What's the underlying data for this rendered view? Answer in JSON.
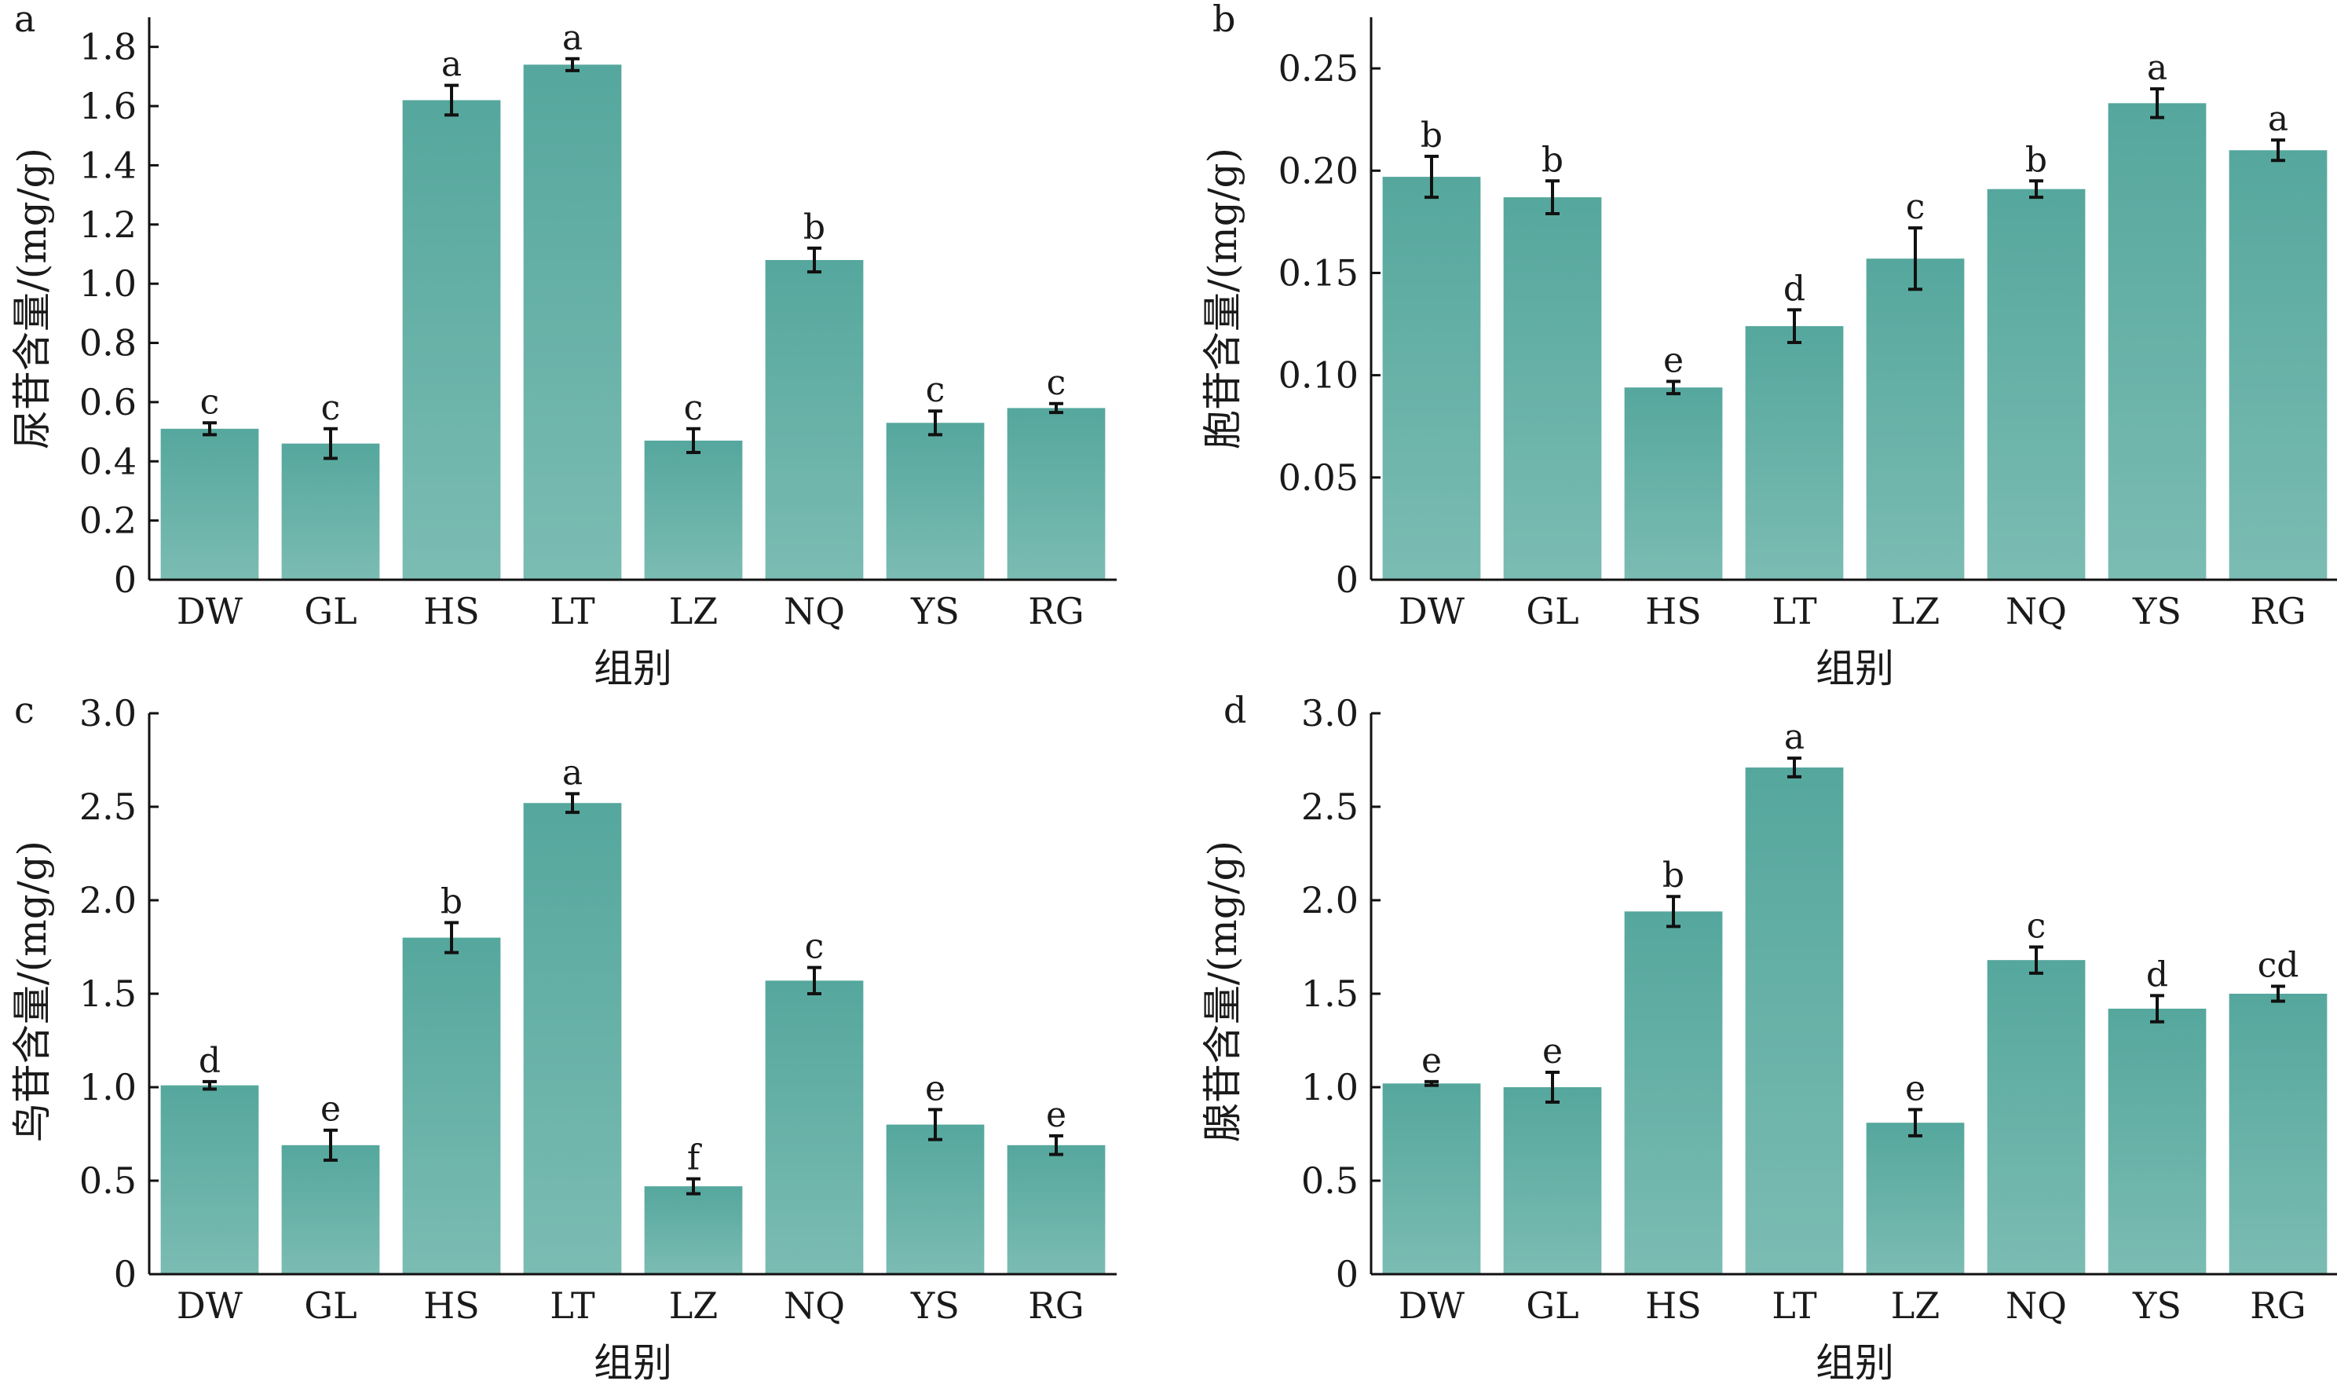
{
  "bar_color_top": "#55a79d",
  "bar_color_bottom": "#7bbcb3",
  "chart_data": [
    {
      "type": "bar",
      "panel_label": "a",
      "xlabel": "组别",
      "ylabel": "尿苷含量/(mg/g)",
      "categories": [
        "DW",
        "GL",
        "HS",
        "LT",
        "LZ",
        "NQ",
        "YS",
        "RG"
      ],
      "values": [
        0.51,
        0.46,
        1.62,
        1.74,
        0.47,
        1.08,
        0.53,
        0.58
      ],
      "errors": [
        0.02,
        0.05,
        0.05,
        0.02,
        0.04,
        0.04,
        0.04,
        0.015
      ],
      "significance": [
        "c",
        "c",
        "a",
        "a",
        "c",
        "b",
        "c",
        "c"
      ],
      "ylim": [
        0,
        1.9
      ],
      "yticks": [
        0,
        0.2,
        0.4,
        0.6,
        0.8,
        1.0,
        1.2,
        1.4,
        1.6,
        1.8
      ],
      "ytick_labels": [
        "0",
        "0.2",
        "0.4",
        "0.6",
        "0.8",
        "1.0",
        "1.2",
        "1.4",
        "1.6",
        "1.8"
      ]
    },
    {
      "type": "bar",
      "panel_label": "b",
      "xlabel": "组别",
      "ylabel": "胞苷含量/(mg/g)",
      "categories": [
        "DW",
        "GL",
        "HS",
        "LT",
        "LZ",
        "NQ",
        "YS",
        "RG"
      ],
      "values": [
        0.197,
        0.187,
        0.094,
        0.124,
        0.157,
        0.191,
        0.233,
        0.21
      ],
      "errors": [
        0.01,
        0.008,
        0.003,
        0.008,
        0.015,
        0.004,
        0.007,
        0.005
      ],
      "significance": [
        "b",
        "b",
        "e",
        "d",
        "c",
        "b",
        "a",
        "a"
      ],
      "ylim": [
        0,
        0.275
      ],
      "yticks": [
        0,
        0.05,
        0.1,
        0.15,
        0.2,
        0.25
      ],
      "ytick_labels": [
        "0",
        "0.05",
        "0.10",
        "0.15",
        "0.20",
        "0.25"
      ]
    },
    {
      "type": "bar",
      "panel_label": "c",
      "xlabel": "组别",
      "ylabel": "鸟苷含量/(mg/g)",
      "categories": [
        "DW",
        "GL",
        "HS",
        "LT",
        "LZ",
        "NQ",
        "YS",
        "RG"
      ],
      "values": [
        1.01,
        0.69,
        1.8,
        2.52,
        0.47,
        1.57,
        0.8,
        0.69
      ],
      "errors": [
        0.02,
        0.08,
        0.08,
        0.05,
        0.04,
        0.07,
        0.08,
        0.05
      ],
      "significance": [
        "d",
        "e",
        "b",
        "a",
        "f",
        "c",
        "e",
        "e"
      ],
      "ylim": [
        0,
        3.0
      ],
      "yticks": [
        0,
        0.5,
        1.0,
        1.5,
        2.0,
        2.5,
        3.0
      ],
      "ytick_labels": [
        "0",
        "0.5",
        "1.0",
        "1.5",
        "2.0",
        "2.5",
        "3.0"
      ]
    },
    {
      "type": "bar",
      "panel_label": "d",
      "xlabel": "组别",
      "ylabel": "腺苷含量/(mg/g)",
      "categories": [
        "DW",
        "GL",
        "HS",
        "LT",
        "LZ",
        "NQ",
        "YS",
        "RG"
      ],
      "values": [
        1.02,
        1.0,
        1.94,
        2.71,
        0.81,
        1.68,
        1.42,
        1.5
      ],
      "errors": [
        0.01,
        0.08,
        0.08,
        0.05,
        0.07,
        0.07,
        0.07,
        0.04
      ],
      "significance": [
        "e",
        "e",
        "b",
        "a",
        "e",
        "c",
        "d",
        "cd"
      ],
      "ylim": [
        0,
        3.0
      ],
      "yticks": [
        0,
        0.5,
        1.0,
        1.5,
        2.0,
        2.5,
        3.0
      ],
      "ytick_labels": [
        "0",
        "0.5",
        "1.0",
        "1.5",
        "2.0",
        "2.5",
        "3.0"
      ]
    }
  ]
}
